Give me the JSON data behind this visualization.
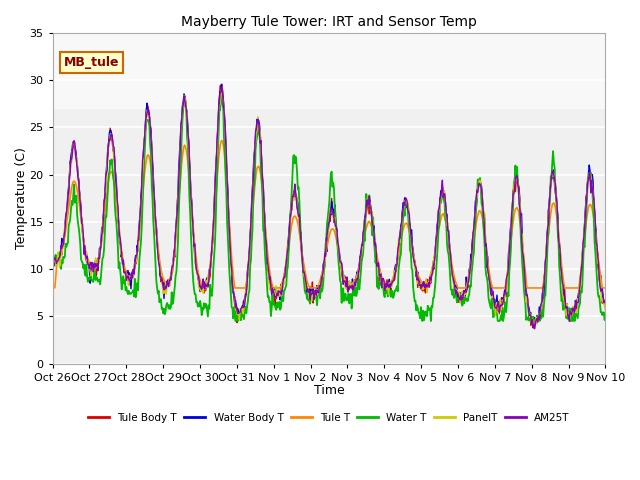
{
  "title": "Mayberry Tule Tower: IRT and Sensor Temp",
  "xlabel": "Time",
  "ylabel": "Temperature (C)",
  "ylim": [
    0,
    35
  ],
  "background_color": "#f0f0f0",
  "plot_bg_color": "#f0f0f0",
  "grid_color": "white",
  "annotation_text": "MB_tule",
  "annotation_box_color": "#ffffcc",
  "annotation_box_edge": "#cc6600",
  "annotation_text_color": "#880000",
  "series": {
    "Tule Body T": {
      "color": "#dd0000",
      "lw": 1.0
    },
    "Water Body T": {
      "color": "#0000dd",
      "lw": 1.0
    },
    "Tule T": {
      "color": "#ff8800",
      "lw": 1.2
    },
    "Water T": {
      "color": "#00bb00",
      "lw": 1.3
    },
    "PanelT": {
      "color": "#cccc00",
      "lw": 1.0
    },
    "AM25T": {
      "color": "#8800bb",
      "lw": 1.0
    }
  },
  "xtick_labels": [
    "Oct 26",
    "Oct 27",
    "Oct 28",
    "Oct 29",
    "Oct 30",
    "Oct 31",
    "Nov 1",
    "Nov 2",
    "Nov 3",
    "Nov 4",
    "Nov 5",
    "Nov 6",
    "Nov 7",
    "Nov 8",
    "Nov 9",
    "Nov 10"
  ],
  "xtick_positions": [
    0,
    1,
    2,
    3,
    4,
    5,
    6,
    7,
    8,
    9,
    10,
    11,
    12,
    13,
    14,
    15
  ],
  "ytick_positions": [
    0,
    5,
    10,
    15,
    20,
    25,
    30,
    35
  ],
  "shaded_band": [
    27,
    30
  ],
  "shaded_band_color": "#e8e8e8"
}
